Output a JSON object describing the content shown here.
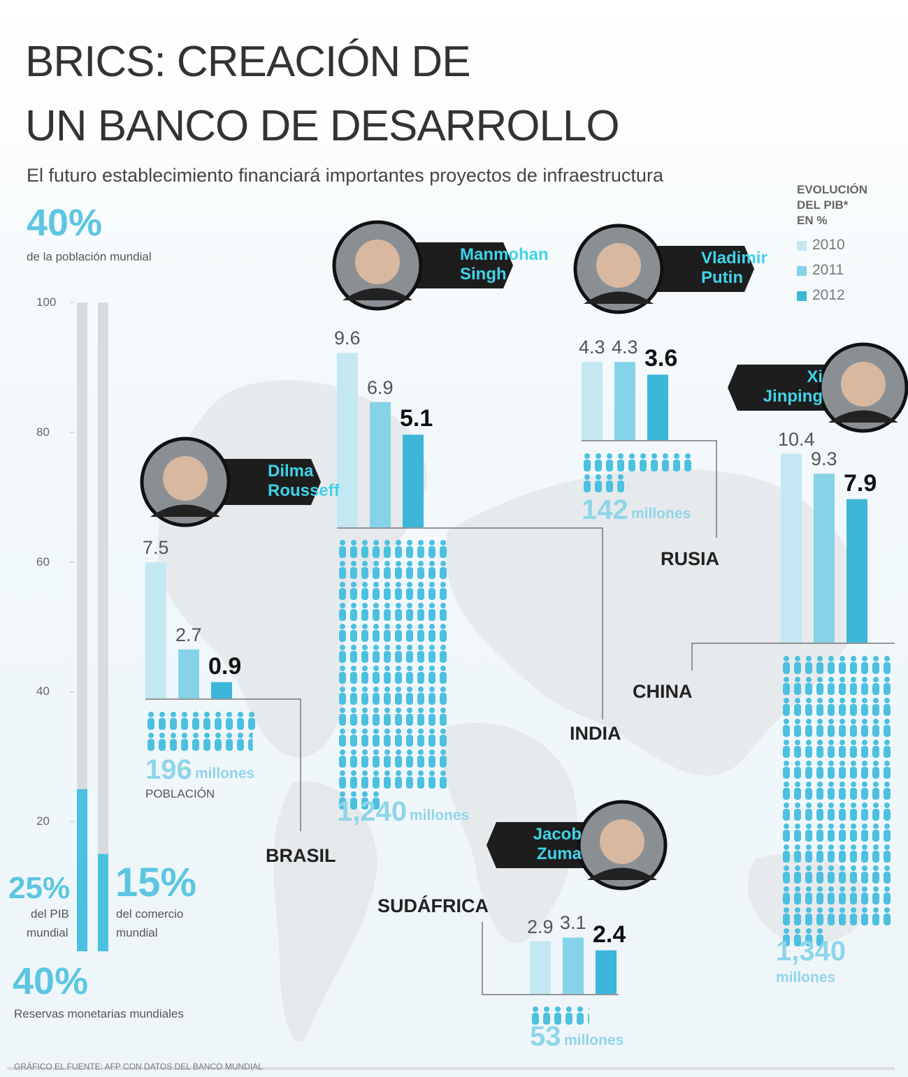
{
  "title_lines": [
    "BRICS: CREACIÓN DE",
    "UN BANCO DE DESARROLLO"
  ],
  "subtitle": "El futuro establecimiento financiará importantes proyectos de infraestructura",
  "highlights": [
    {
      "figure": "40%",
      "text": "de la población mundial"
    },
    {
      "figure": "40%",
      "text": "Reservas monetarias mundiales"
    }
  ],
  "source": "GRÁFICO EL FUENTE: AFP CON DATOS DEL BANCO MUNDIAL",
  "chart_data": [
    {
      "type": "bar",
      "categories": [
        [
          "del PIB",
          "mundial"
        ],
        [
          "del comercio",
          "mundial"
        ]
      ],
      "values": [
        25,
        15
      ],
      "value_labels": [
        "25%",
        "15%"
      ],
      "color": "#4cc0e0",
      "ylim": [
        0,
        100
      ],
      "yticks": [
        20,
        40,
        60,
        80,
        100
      ]
    },
    {
      "type": "bar",
      "legend_title": [
        "EVOLUCIÓN",
        "DEL PIB*",
        "EN %"
      ],
      "categories": [
        "BRASIL",
        "INDIA",
        "RUSIA",
        "CHINA",
        "SUDÁFRICA"
      ],
      "leaders": [
        [
          "Dilma",
          "Rousseff"
        ],
        [
          "Manmohan",
          "Singh"
        ],
        [
          "Vladimir",
          "Putin"
        ],
        [
          "Xi",
          "Jinping"
        ],
        [
          "Jacob",
          "Zuma"
        ]
      ],
      "series": [
        {
          "name": "2010",
          "color": "#c3e8f3",
          "values": [
            7.5,
            9.6,
            4.3,
            10.4,
            2.9
          ]
        },
        {
          "name": "2011",
          "color": "#86d3e9",
          "values": [
            2.7,
            6.9,
            4.3,
            9.3,
            3.1
          ]
        },
        {
          "name": "2012",
          "color": "#3db6da",
          "values": [
            0.9,
            5.1,
            3.6,
            7.9,
            2.4
          ]
        }
      ],
      "population": [
        196,
        1240,
        142,
        1340,
        53
      ],
      "population_labels": [
        "196",
        "1,240",
        "142",
        "1,340",
        "53"
      ],
      "population_unit": "millones",
      "population_title": "POBLACIÓN"
    }
  ]
}
